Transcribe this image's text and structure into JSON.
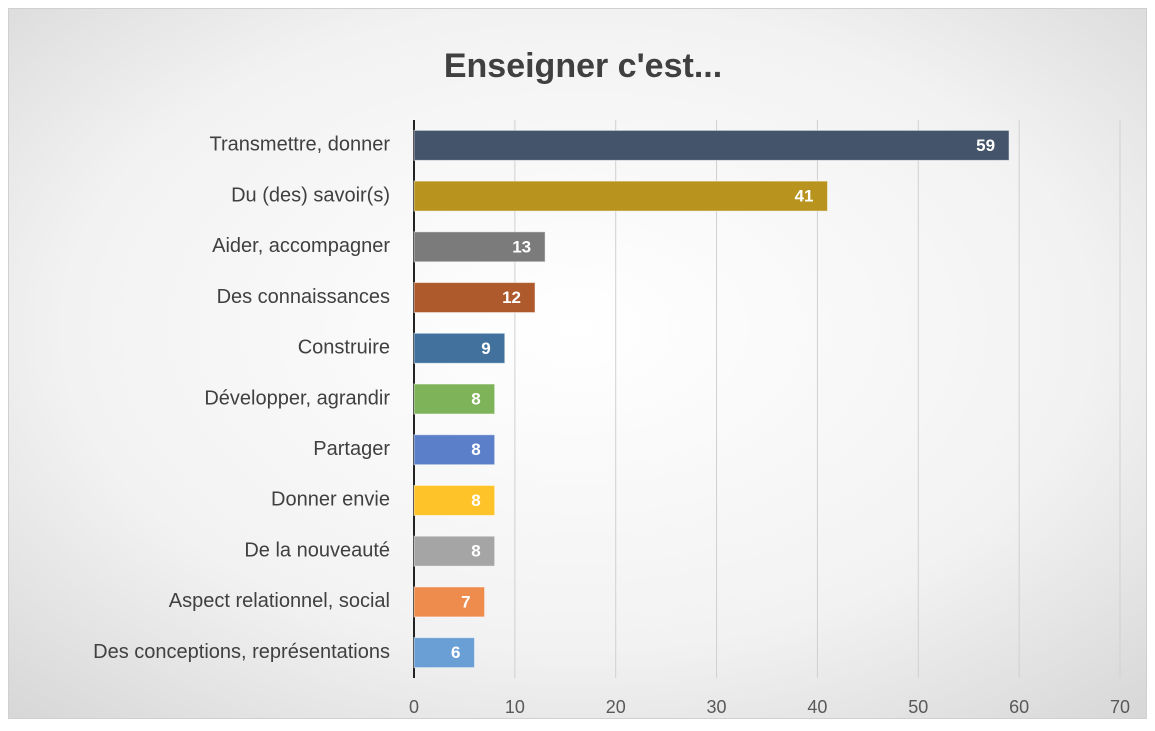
{
  "chart_data": {
    "type": "bar",
    "orientation": "horizontal",
    "title": "Enseigner c'est...",
    "categories": [
      "Transmettre, donner",
      "Du (des) savoir(s)",
      "Aider, accompagner",
      "Des connaissances",
      "Construire",
      "Développer, agrandir",
      "Partager",
      "Donner envie",
      "De la nouveauté",
      "Aspect relationnel, social",
      "Des conceptions, représentations"
    ],
    "values": [
      59,
      41,
      13,
      12,
      9,
      8,
      8,
      8,
      8,
      7,
      6
    ],
    "colors": [
      "#44546a",
      "#b8941f",
      "#7b7b7b",
      "#ae5a2c",
      "#41719c",
      "#7fb35a",
      "#5b7fc8",
      "#ffc32a",
      "#a5a5a5",
      "#ee8c4e",
      "#6a9fd6"
    ],
    "xlim": [
      0,
      70
    ],
    "xticks": [
      0,
      10,
      20,
      30,
      40,
      50,
      60,
      70
    ],
    "grid": true
  }
}
